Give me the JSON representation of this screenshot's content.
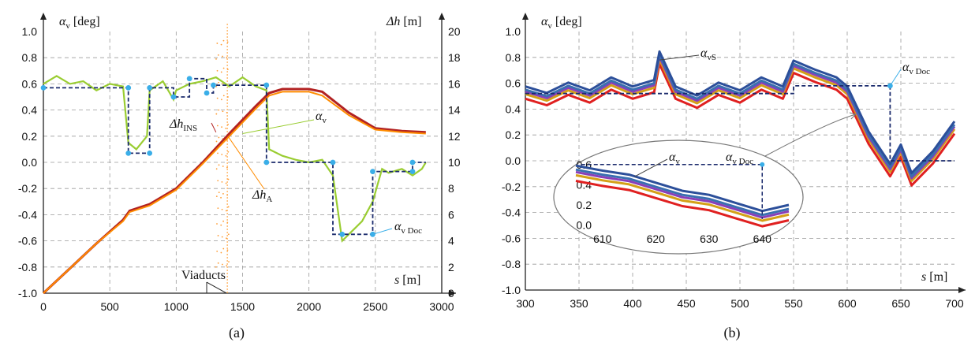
{
  "chart_data": [
    {
      "type": "line",
      "panel_caption": "(a)",
      "y_label_left": "αv [deg]",
      "y_label_right": "Δh [m]",
      "x_label": "s [m]",
      "xlim": [
        0,
        3000
      ],
      "ylim_left": [
        -1.0,
        1.0
      ],
      "ylim_right": [
        0,
        20
      ],
      "x_ticks": [
        "0",
        "500",
        "1000",
        "1500",
        "2000",
        "2500",
        "3000"
      ],
      "y_ticks_left": [
        "1.0",
        "0.8",
        "0.6",
        "0.4",
        "0.2",
        "0.0",
        "-0.2",
        "-0.4",
        "-0.6",
        "-0.8",
        "-1.0"
      ],
      "y_ticks_right": [
        "20",
        "18",
        "16",
        "14",
        "12",
        "10",
        "8",
        "6",
        "4",
        "2",
        "0"
      ],
      "annotations": [
        "αv",
        "ΔhINS",
        "ΔhA",
        "αv Doc",
        "Viaducts"
      ],
      "series": [
        {
          "name": "αv",
          "axis": "left",
          "color": "#9acd32",
          "x": [
            0,
            100,
            200,
            300,
            400,
            500,
            600,
            640,
            700,
            780,
            800,
            900,
            980,
            1000,
            1100,
            1200,
            1300,
            1400,
            1500,
            1600,
            1680,
            1700,
            1800,
            1900,
            2000,
            2100,
            2180,
            2250,
            2300,
            2400,
            2480,
            2550,
            2600,
            2700,
            2780,
            2850,
            2880
          ],
          "y": [
            0.6,
            0.66,
            0.6,
            0.62,
            0.55,
            0.6,
            0.58,
            0.15,
            0.1,
            0.2,
            0.55,
            0.62,
            0.48,
            0.55,
            0.6,
            0.62,
            0.65,
            0.58,
            0.65,
            0.58,
            0.55,
            0.1,
            0.05,
            0.02,
            0.0,
            0.02,
            -0.1,
            -0.6,
            -0.55,
            -0.45,
            -0.3,
            -0.05,
            -0.08,
            -0.05,
            -0.1,
            -0.05,
            0.0
          ]
        },
        {
          "name": "αv Doc",
          "axis": "left",
          "color": "#1a2a6c",
          "x": [
            0,
            640,
            640,
            800,
            800,
            980,
            980,
            1100,
            1100,
            1230,
            1230,
            1280,
            1280,
            1680,
            1680,
            2180,
            2180,
            2250,
            2250,
            2480,
            2480,
            2780,
            2780,
            2880
          ],
          "y": [
            0.57,
            0.57,
            0.07,
            0.07,
            0.57,
            0.57,
            0.5,
            0.5,
            0.64,
            0.64,
            0.53,
            0.53,
            0.59,
            0.59,
            0.0,
            0.0,
            -0.55,
            -0.55,
            -0.55,
            -0.55,
            -0.07,
            -0.07,
            0.0,
            0.0
          ]
        },
        {
          "name": "ΔhINS",
          "axis": "right",
          "color": "#b22222",
          "x": [
            0,
            200,
            400,
            600,
            650,
            800,
            1000,
            1200,
            1400,
            1600,
            1700,
            1800,
            2000,
            2100,
            2300,
            2500,
            2700,
            2880
          ],
          "y": [
            0.0,
            1.9,
            3.8,
            5.6,
            6.3,
            6.8,
            8.0,
            10.0,
            12.2,
            14.3,
            15.3,
            15.6,
            15.6,
            15.4,
            13.8,
            12.6,
            12.4,
            12.3
          ]
        },
        {
          "name": "ΔhA",
          "axis": "right",
          "color": "#ff8c00",
          "x": [
            0,
            200,
            400,
            600,
            650,
            800,
            1000,
            1200,
            1400,
            1600,
            1700,
            1800,
            2000,
            2100,
            2300,
            2500,
            2700,
            2880
          ],
          "y": [
            0.0,
            1.9,
            3.8,
            5.5,
            6.2,
            6.7,
            7.9,
            9.9,
            12.0,
            14.1,
            15.1,
            15.4,
            15.4,
            15.1,
            13.6,
            12.5,
            12.3,
            12.2
          ]
        }
      ]
    },
    {
      "type": "line",
      "panel_caption": "(b)",
      "y_label": "αv [deg]",
      "x_label": "s [m]",
      "xlim": [
        300,
        700
      ],
      "ylim": [
        -1.0,
        1.0
      ],
      "x_ticks": [
        "300",
        "350",
        "400",
        "450",
        "500",
        "550",
        "600",
        "650",
        "700"
      ],
      "y_ticks": [
        "1.0",
        "0.8",
        "0.6",
        "0.4",
        "0.2",
        "0.0",
        "-0.2",
        "-0.4",
        "-0.6",
        "-0.8",
        "-1.0"
      ],
      "annotations": [
        "αvS",
        "αv Doc"
      ],
      "inset": {
        "x_ticks": [
          "610",
          "620",
          "630",
          "640"
        ],
        "y_ticks": [
          "0.6",
          "0.4",
          "0.2",
          "0.0"
        ],
        "annotations": [
          "αv",
          "αv Doc"
        ]
      },
      "series": [
        {
          "name": "αvS",
          "color": "#3a6fb0",
          "x": [
            300,
            320,
            340,
            360,
            380,
            400,
            420,
            425,
            440,
            460,
            480,
            500,
            520,
            540,
            550,
            570,
            590,
            600,
            620,
            640,
            650,
            660,
            680,
            700
          ],
          "y": [
            0.55,
            0.5,
            0.58,
            0.52,
            0.62,
            0.55,
            0.6,
            0.82,
            0.55,
            0.48,
            0.58,
            0.52,
            0.62,
            0.55,
            0.75,
            0.68,
            0.62,
            0.55,
            0.2,
            -0.05,
            0.1,
            -0.12,
            0.05,
            0.28
          ]
        },
        {
          "name": "αv Doc",
          "color": "#1a2a6c",
          "x": [
            300,
            550,
            550,
            640,
            640,
            700
          ],
          "y": [
            0.52,
            0.52,
            0.58,
            0.58,
            0.0,
            0.0
          ]
        }
      ]
    }
  ]
}
